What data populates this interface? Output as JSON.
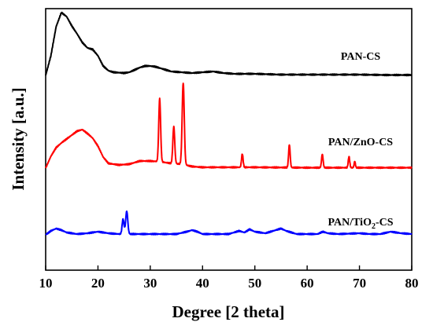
{
  "chart_data": {
    "type": "line",
    "title": "",
    "xlabel": "Degree [2 theta]",
    "ylabel": "Intensity [a.u.]",
    "xlim": [
      10,
      80
    ],
    "xticks": [
      10,
      20,
      30,
      40,
      50,
      60,
      70,
      80
    ],
    "yticks_shown": false,
    "grid": false,
    "legend": "inline labels at right of each trace",
    "series": [
      {
        "name": "PAN-CS",
        "color": "#000000",
        "label_main": "PAN-CS",
        "label_sub": "",
        "label_suffix": "",
        "baseline": 0.0,
        "background": [
          [
            10,
            0.0
          ],
          [
            11,
            25
          ],
          [
            12,
            62
          ],
          [
            13,
            80
          ],
          [
            14,
            75
          ],
          [
            15,
            63
          ],
          [
            16,
            53
          ],
          [
            17,
            42
          ],
          [
            18,
            35
          ],
          [
            19,
            33
          ],
          [
            20,
            25
          ],
          [
            21,
            12
          ],
          [
            22,
            6
          ],
          [
            23,
            4
          ],
          [
            25,
            3
          ],
          [
            26,
            4
          ],
          [
            27,
            7
          ],
          [
            28,
            10
          ],
          [
            29,
            12
          ],
          [
            30,
            12
          ],
          [
            31,
            11
          ],
          [
            32,
            9
          ],
          [
            33,
            7
          ],
          [
            34,
            5
          ],
          [
            36,
            4
          ],
          [
            38,
            3
          ],
          [
            40,
            4
          ],
          [
            42,
            5
          ],
          [
            44,
            3
          ],
          [
            46,
            2
          ],
          [
            50,
            2
          ],
          [
            55,
            1
          ],
          [
            60,
            1
          ],
          [
            65,
            1
          ],
          [
            70,
            1
          ],
          [
            75,
            0.5
          ],
          [
            80,
            0.5
          ]
        ],
        "peaks": []
      },
      {
        "name": "PAN/ZnO-CS",
        "color": "#ff0000",
        "label_main": "PAN/ZnO-CS",
        "label_sub": "",
        "label_suffix": "",
        "baseline": 0.0,
        "background": [
          [
            10,
            0.0
          ],
          [
            11,
            15
          ],
          [
            12,
            26
          ],
          [
            13,
            32
          ],
          [
            14,
            37
          ],
          [
            15,
            42
          ],
          [
            16,
            47
          ],
          [
            17,
            49
          ],
          [
            18,
            44
          ],
          [
            19,
            38
          ],
          [
            20,
            28
          ],
          [
            21,
            14
          ],
          [
            22,
            6
          ],
          [
            24,
            4
          ],
          [
            26,
            5
          ],
          [
            28,
            9
          ],
          [
            30,
            9
          ],
          [
            32,
            8
          ],
          [
            34,
            6
          ],
          [
            36,
            5
          ],
          [
            38,
            2
          ],
          [
            40,
            1
          ],
          [
            45,
            1
          ],
          [
            50,
            1
          ],
          [
            60,
            0.5
          ],
          [
            70,
            0.5
          ],
          [
            80,
            0.5
          ]
        ],
        "peaks": [
          [
            31.8,
            80,
            0.18
          ],
          [
            34.5,
            47,
            0.18
          ],
          [
            36.3,
            104,
            0.2
          ],
          [
            47.6,
            17,
            0.15
          ],
          [
            56.6,
            29,
            0.15
          ],
          [
            62.9,
            17,
            0.15
          ],
          [
            68.0,
            14,
            0.14
          ],
          [
            69.1,
            8,
            0.12
          ]
        ]
      },
      {
        "name": "PAN/TiO2-CS",
        "color": "#0000ff",
        "label_main": "PAN/TiO",
        "label_sub": "2",
        "label_suffix": "-CS",
        "baseline": 0.0,
        "background": [
          [
            10,
            0.0
          ],
          [
            11,
            5
          ],
          [
            12,
            8
          ],
          [
            13,
            6
          ],
          [
            14,
            3
          ],
          [
            16,
            1
          ],
          [
            18,
            2
          ],
          [
            20,
            4
          ],
          [
            22,
            2
          ],
          [
            24,
            1
          ],
          [
            26,
            1
          ],
          [
            28,
            1
          ],
          [
            30,
            1
          ],
          [
            32,
            1
          ],
          [
            35,
            1
          ],
          [
            37,
            4
          ],
          [
            38,
            6
          ],
          [
            39,
            4
          ],
          [
            40,
            1
          ],
          [
            45,
            1
          ],
          [
            47,
            5
          ],
          [
            48,
            3
          ],
          [
            49,
            7
          ],
          [
            50,
            4
          ],
          [
            52,
            2
          ],
          [
            54,
            6
          ],
          [
            55,
            8
          ],
          [
            56,
            5
          ],
          [
            58,
            1
          ],
          [
            62,
            1
          ],
          [
            63,
            4
          ],
          [
            64,
            2
          ],
          [
            66,
            1
          ],
          [
            70,
            2
          ],
          [
            72,
            1
          ],
          [
            74,
            1
          ],
          [
            76,
            4
          ],
          [
            78,
            2
          ],
          [
            80,
            1
          ]
        ],
        "peaks": [
          [
            24.8,
            19,
            0.18
          ],
          [
            25.5,
            29,
            0.2
          ]
        ]
      }
    ]
  }
}
